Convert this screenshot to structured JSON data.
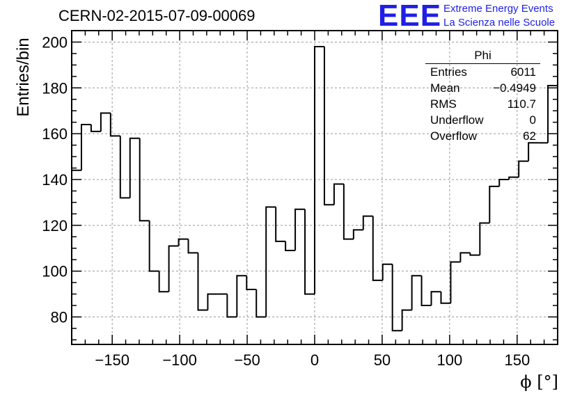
{
  "header": {
    "title": "CERN-02-2015-07-09-00069",
    "logo_mark": "EEE",
    "logo_line1": "Extreme Energy Events",
    "logo_line2": "La Scienza nelle Scuole",
    "logo_color": "#1f1fe6"
  },
  "stats": {
    "title": "Phi",
    "rows": [
      {
        "label": "Entries",
        "value": "6011"
      },
      {
        "label": "Mean",
        "value": "−0.4949"
      },
      {
        "label": "RMS",
        "value": "110.7"
      },
      {
        "label": "Underflow",
        "value": "0"
      },
      {
        "label": "Overflow",
        "value": "62"
      }
    ]
  },
  "chart_data": {
    "type": "histogram",
    "title": "CERN-02-2015-07-09-00069",
    "xlabel": "ϕ [°]",
    "ylabel": "Entries/bin",
    "xlim": [
      -180,
      180
    ],
    "ylim": [
      68,
      205
    ],
    "grid": true,
    "bin_width": 7.2,
    "x_ticks": [
      -150,
      -100,
      -50,
      0,
      50,
      100,
      150
    ],
    "x_tick_labels": [
      "−150",
      "−100",
      "−50",
      "0",
      "50",
      "100",
      "150"
    ],
    "y_ticks": [
      80,
      100,
      120,
      140,
      160,
      180,
      200
    ],
    "y_tick_labels": [
      "80",
      "100",
      "120",
      "140",
      "160",
      "180",
      "200"
    ],
    "bin_edges": [
      -180,
      -172.8,
      -165.6,
      -158.4,
      -151.2,
      -144,
      -136.8,
      -129.6,
      -122.4,
      -115.2,
      -108,
      -100.8,
      -93.6,
      -86.4,
      -79.2,
      -72,
      -64.8,
      -57.6,
      -50.4,
      -43.2,
      -36,
      -28.8,
      -21.6,
      -14.4,
      -7.2,
      0,
      7.2,
      14.4,
      21.6,
      28.8,
      36,
      43.2,
      50.4,
      57.6,
      64.8,
      72,
      79.2,
      86.4,
      93.6,
      100.8,
      108,
      115.2,
      122.4,
      129.6,
      136.8,
      144,
      151.2,
      158.4,
      165.6,
      172.8,
      180
    ],
    "values": [
      144,
      164,
      161,
      169,
      159,
      132,
      158,
      122,
      100,
      91,
      111,
      114,
      108,
      83,
      90,
      90,
      80,
      98,
      92,
      80,
      128,
      113,
      109,
      127,
      90,
      198,
      129,
      138,
      114,
      118,
      124,
      96,
      103,
      74,
      83,
      98,
      85,
      91,
      86,
      104,
      108,
      107,
      121,
      137,
      140,
      141,
      148,
      156,
      156,
      181
    ],
    "stats_title": "Phi",
    "entries": 6011,
    "mean": -0.4949,
    "rms": 110.7,
    "underflow": 0,
    "overflow": 62
  }
}
